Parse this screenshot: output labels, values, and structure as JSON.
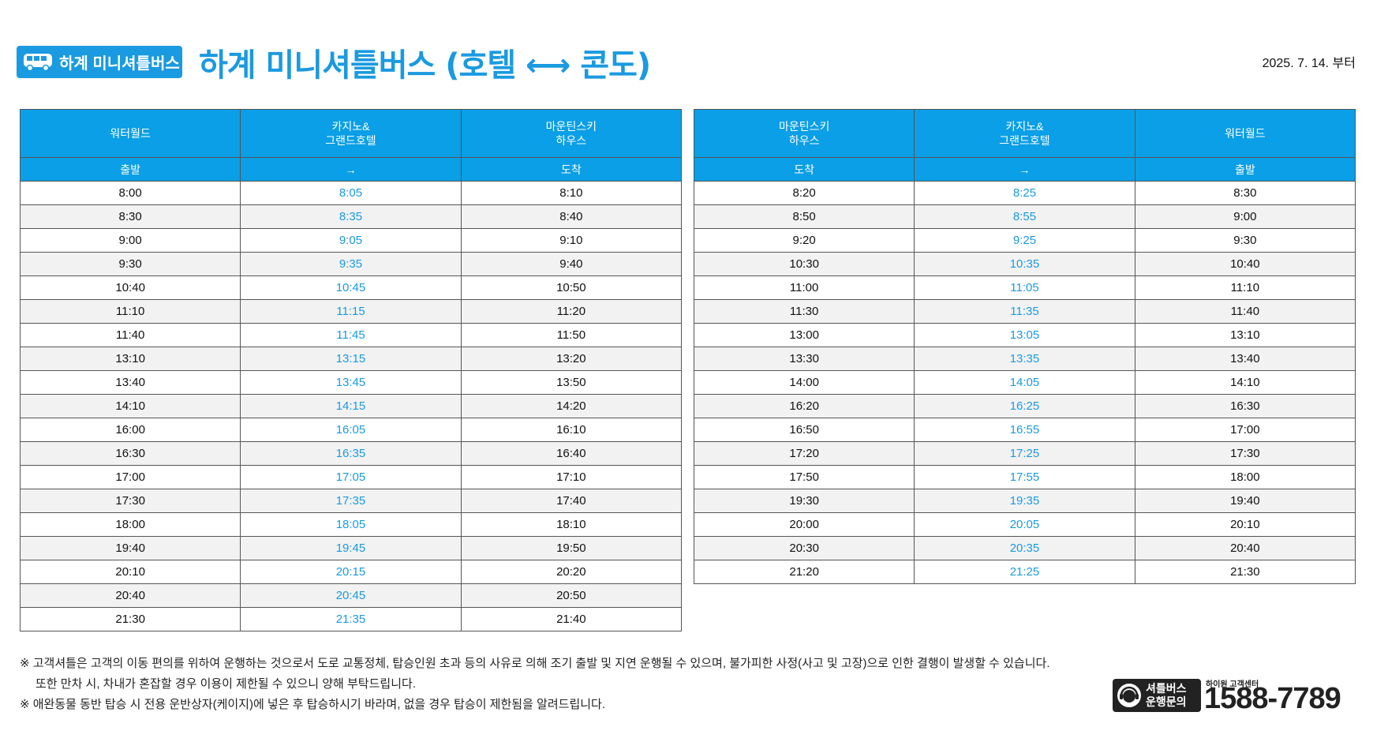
{
  "badge": {
    "label": "하계 미니셔틀버스",
    "icon": "bus-icon"
  },
  "title": "하계 미니셔틀버스 (호텔 ⟷ 콘도)",
  "effective_date": "2025. 7. 14. 부터",
  "colors": {
    "accent": "#1a9ae0",
    "header_bg": "#0a9fe6"
  },
  "table_a": {
    "headers": [
      "워터월드",
      "카지노&\n그랜드호텔",
      "마운틴스키\n하우스"
    ],
    "subheaders": [
      "출발",
      "→",
      "도착"
    ],
    "rows": [
      [
        "8:00",
        "8:05",
        "8:10"
      ],
      [
        "8:30",
        "8:35",
        "8:40"
      ],
      [
        "9:00",
        "9:05",
        "9:10"
      ],
      [
        "9:30",
        "9:35",
        "9:40"
      ],
      [
        "10:40",
        "10:45",
        "10:50"
      ],
      [
        "11:10",
        "11:15",
        "11:20"
      ],
      [
        "11:40",
        "11:45",
        "11:50"
      ],
      [
        "13:10",
        "13:15",
        "13:20"
      ],
      [
        "13:40",
        "13:45",
        "13:50"
      ],
      [
        "14:10",
        "14:15",
        "14:20"
      ],
      [
        "16:00",
        "16:05",
        "16:10"
      ],
      [
        "16:30",
        "16:35",
        "16:40"
      ],
      [
        "17:00",
        "17:05",
        "17:10"
      ],
      [
        "17:30",
        "17:35",
        "17:40"
      ],
      [
        "18:00",
        "18:05",
        "18:10"
      ],
      [
        "19:40",
        "19:45",
        "19:50"
      ],
      [
        "20:10",
        "20:15",
        "20:20"
      ],
      [
        "20:40",
        "20:45",
        "20:50"
      ],
      [
        "21:30",
        "21:35",
        "21:40"
      ]
    ]
  },
  "table_b": {
    "headers": [
      "마운틴스키\n하우스",
      "카지노&\n그랜드호텔",
      "워터월드"
    ],
    "subheaders": [
      "도착",
      "→",
      "출발"
    ],
    "rows": [
      [
        "8:20",
        "8:25",
        "8:30"
      ],
      [
        "8:50",
        "8:55",
        "9:00"
      ],
      [
        "9:20",
        "9:25",
        "9:30"
      ],
      [
        "10:30",
        "10:35",
        "10:40"
      ],
      [
        "11:00",
        "11:05",
        "11:10"
      ],
      [
        "11:30",
        "11:35",
        "11:40"
      ],
      [
        "13:00",
        "13:05",
        "13:10"
      ],
      [
        "13:30",
        "13:35",
        "13:40"
      ],
      [
        "14:00",
        "14:05",
        "14:10"
      ],
      [
        "16:20",
        "16:25",
        "16:30"
      ],
      [
        "16:50",
        "16:55",
        "17:00"
      ],
      [
        "17:20",
        "17:25",
        "17:30"
      ],
      [
        "17:50",
        "17:55",
        "18:00"
      ],
      [
        "19:30",
        "19:35",
        "19:40"
      ],
      [
        "20:00",
        "20:05",
        "20:10"
      ],
      [
        "20:30",
        "20:35",
        "20:40"
      ],
      [
        "21:20",
        "21:25",
        "21:30"
      ]
    ]
  },
  "notes": {
    "line1": "※ 고객셔틀은 고객의 이동 편의를 위하여 운행하는 것으로서 도로 교통정체, 탑승인원 초과 등의 사유로 의해 조기 출발 및 지연 운행될 수 있으며, 불가피한 사정(사고 및 고장)으로 인한 결행이 발생할 수 있습니다.",
    "line2": "또한 만차 시, 차내가 혼잡할 경우 이용이 제한될 수 있으니 양해 부탁드립니다.",
    "line3": "※ 애완동물 동반 탑승 시 전용 운반상자(케이지)에 넣은 후 탑승하시기 바라며, 없을 경우 탑승이 제한됨을 알려드립니다."
  },
  "contact": {
    "label_line1": "셔틀버스",
    "label_line2": "운행문의",
    "center": "하이원 고객센터",
    "phone": "1588-7789",
    "icon": "headset-icon"
  }
}
